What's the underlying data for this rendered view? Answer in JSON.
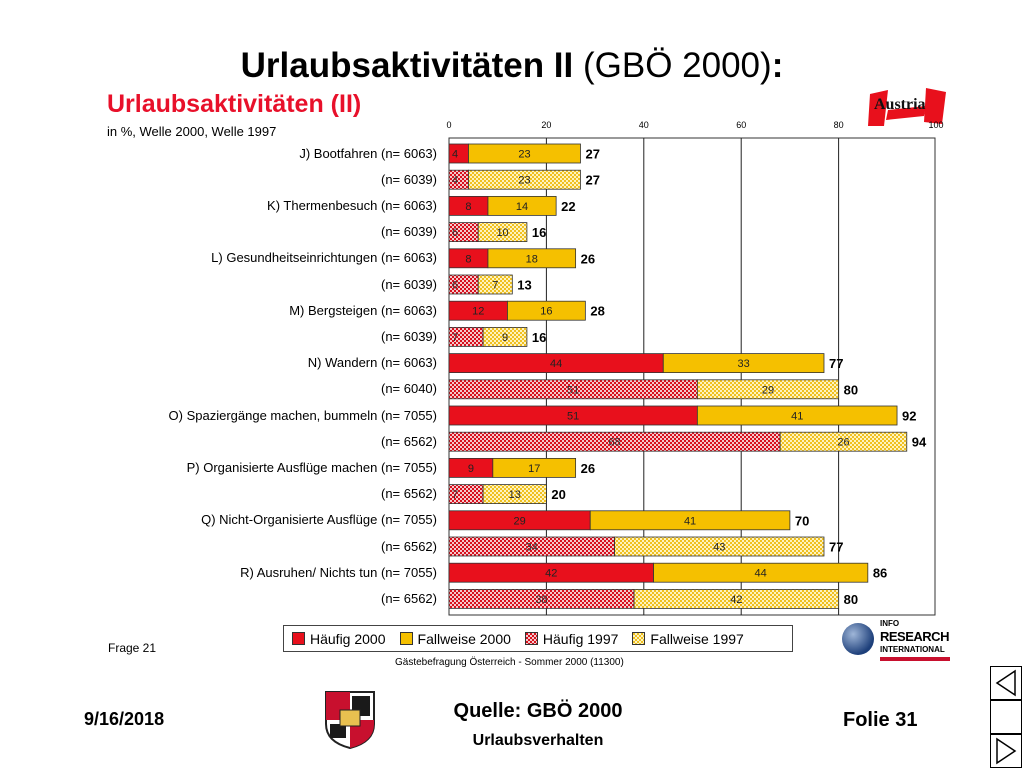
{
  "slide": {
    "title_bold": "Urlaubsaktivitäten II",
    "title_rest": " (GBÖ 2000)",
    "title_colon": ":"
  },
  "chart_meta": {
    "frage": "Frage 21",
    "source": "Gästebefragung Österreich - Sommer 2000 (11300)"
  },
  "logos": {
    "austria": "Austria",
    "info_line1": "INFO",
    "info_line2": "RESEARCH",
    "info_line3": "INTERNATIONAL"
  },
  "footer": {
    "date": "9/16/2018",
    "source": "Quelle: GBÖ 2000",
    "subtitle": "Urlaubsverhalten",
    "folie": "Folie 31"
  },
  "chart_data": {
    "type": "bar",
    "orientation": "horizontal",
    "stacked": true,
    "title": "Urlaubsaktivitäten (II)",
    "subtitle": "in %, Welle 2000, Welle 1997",
    "xlim": [
      0,
      100
    ],
    "xticks": [
      0,
      20,
      40,
      60,
      80,
      100
    ],
    "grid": true,
    "legend_position": "bottom",
    "colors": {
      "haeufig2000": "#e8101c",
      "fallweise2000": "#f5c000",
      "haeufig1997": "#e89aa0",
      "fallweise1997": "#f9e48c"
    },
    "legend": [
      "Häufig 2000",
      "Fallweise 2000",
      "Häufig 1997",
      "Fallweise 1997"
    ],
    "rows": [
      {
        "label": "J) Bootfahren (n= 6063)",
        "wave": "2000",
        "haeufig": 4,
        "fallweise": 23,
        "total": 27
      },
      {
        "label": "(n= 6039)",
        "wave": "1997",
        "haeufig": 4,
        "fallweise": 23,
        "total": 27
      },
      {
        "label": "K) Thermenbesuch (n= 6063)",
        "wave": "2000",
        "haeufig": 8,
        "fallweise": 14,
        "total": 22
      },
      {
        "label": "(n= 6039)",
        "wave": "1997",
        "haeufig": 6,
        "fallweise": 10,
        "total": 16
      },
      {
        "label": "L) Gesundheitseinrichtungen (n= 6063)",
        "wave": "2000",
        "haeufig": 8,
        "fallweise": 18,
        "total": 26
      },
      {
        "label": "(n= 6039)",
        "wave": "1997",
        "haeufig": 6,
        "fallweise": 7,
        "total": 13
      },
      {
        "label": "M) Bergsteigen (n= 6063)",
        "wave": "2000",
        "haeufig": 12,
        "fallweise": 16,
        "total": 28
      },
      {
        "label": "(n= 6039)",
        "wave": "1997",
        "haeufig": 7,
        "fallweise": 9,
        "total": 16
      },
      {
        "label": "N) Wandern (n= 6063)",
        "wave": "2000",
        "haeufig": 44,
        "fallweise": 33,
        "total": 77
      },
      {
        "label": "(n= 6040)",
        "wave": "1997",
        "haeufig": 51,
        "fallweise": 29,
        "total": 80
      },
      {
        "label": "O) Spaziergänge machen, bummeln (n= 7055)",
        "wave": "2000",
        "haeufig": 51,
        "fallweise": 41,
        "total": 92
      },
      {
        "label": "(n= 6562)",
        "wave": "1997",
        "haeufig": 68,
        "fallweise": 26,
        "total": 94
      },
      {
        "label": "P) Organisierte Ausflüge machen (n= 7055)",
        "wave": "2000",
        "haeufig": 9,
        "fallweise": 17,
        "total": 26
      },
      {
        "label": "(n= 6562)",
        "wave": "1997",
        "haeufig": 7,
        "fallweise": 13,
        "total": 20
      },
      {
        "label": "Q) Nicht-Organisierte Ausflüge (n= 7055)",
        "wave": "2000",
        "haeufig": 29,
        "fallweise": 41,
        "total": 70
      },
      {
        "label": "(n= 6562)",
        "wave": "1997",
        "haeufig": 34,
        "fallweise": 43,
        "total": 77
      },
      {
        "label": "R) Ausruhen/ Nichts tun (n= 7055)",
        "wave": "2000",
        "haeufig": 42,
        "fallweise": 44,
        "total": 86
      },
      {
        "label": "(n= 6562)",
        "wave": "1997",
        "haeufig": 38,
        "fallweise": 42,
        "total": 80
      }
    ]
  }
}
